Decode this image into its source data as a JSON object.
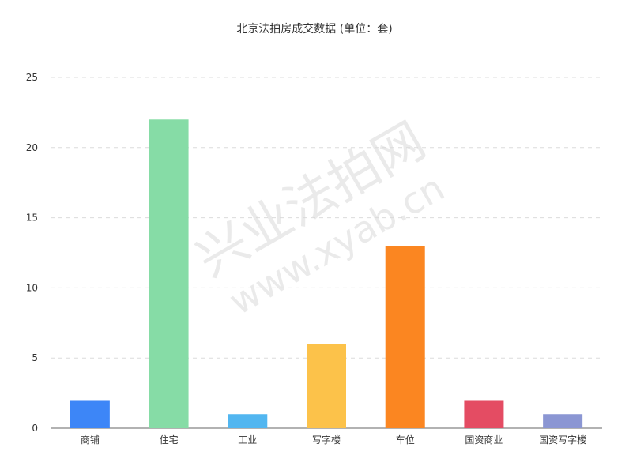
{
  "chart_data": {
    "type": "bar",
    "title": "北京法拍房成交数据 (单位：套)",
    "xlabel": "",
    "ylabel": "",
    "categories": [
      "商铺",
      "住宅",
      "工业",
      "写字楼",
      "车位",
      "国资商业",
      "国资写字楼"
    ],
    "values": [
      2,
      22,
      1,
      6,
      13,
      2,
      1
    ],
    "colors": [
      "#3d86f7",
      "#86dca6",
      "#52b6f0",
      "#fcc24a",
      "#fb8621",
      "#e44c63",
      "#8b96d3"
    ],
    "ylim": [
      0,
      25
    ],
    "yticks": [
      0,
      5,
      10,
      15,
      20,
      25
    ],
    "grid": true,
    "legend": "none"
  },
  "watermark": {
    "line1": "兴业法拍网",
    "line2": "www.xyab.cn"
  }
}
